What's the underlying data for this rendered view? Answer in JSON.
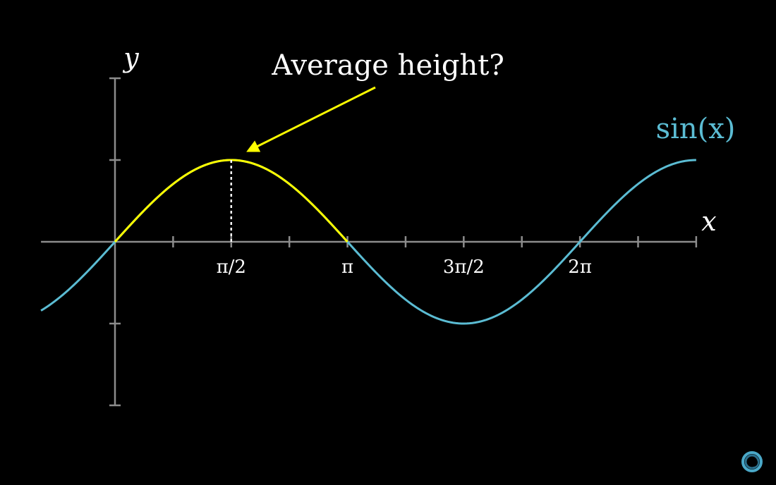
{
  "chart_data": {
    "type": "line",
    "x_axis_label": "x",
    "y_axis_label": "y",
    "xlim": [
      -1.0,
      12.6
    ],
    "ylim": [
      -2,
      2
    ],
    "x_ticks": [
      0.7854,
      1.5708,
      2.3562,
      3.1416,
      3.927,
      4.7124,
      5.4978,
      6.2832,
      7.0686,
      7.854
    ],
    "y_ticks": [
      -2,
      -1,
      1,
      2
    ],
    "x_tick_labels": [
      {
        "x": 1.5708,
        "label": "π/2"
      },
      {
        "x": 3.1416,
        "label": "π"
      },
      {
        "x": 4.7124,
        "label": "3π/2"
      },
      {
        "x": 6.2832,
        "label": "2π"
      }
    ],
    "series": [
      {
        "name": "sin(x)",
        "function": "sin",
        "x_range": [
          -1.0,
          7.854
        ],
        "color": "#5BBCD3"
      }
    ],
    "highlight": {
      "x_range": [
        0,
        3.1416
      ],
      "color": "#FFFF00",
      "marker_x": 1.5708,
      "marker_y": 1
    },
    "annotation": {
      "text": "Average height?",
      "target_x": 1.5708,
      "target_y": 1,
      "color": "#FFFF00"
    },
    "colors": {
      "axis": "#8C8C8C",
      "text": "#FFFFFF",
      "background": "#000000"
    }
  },
  "logo": {
    "name": "pi-creature-logo-icon",
    "color": "#4AA8C8"
  }
}
